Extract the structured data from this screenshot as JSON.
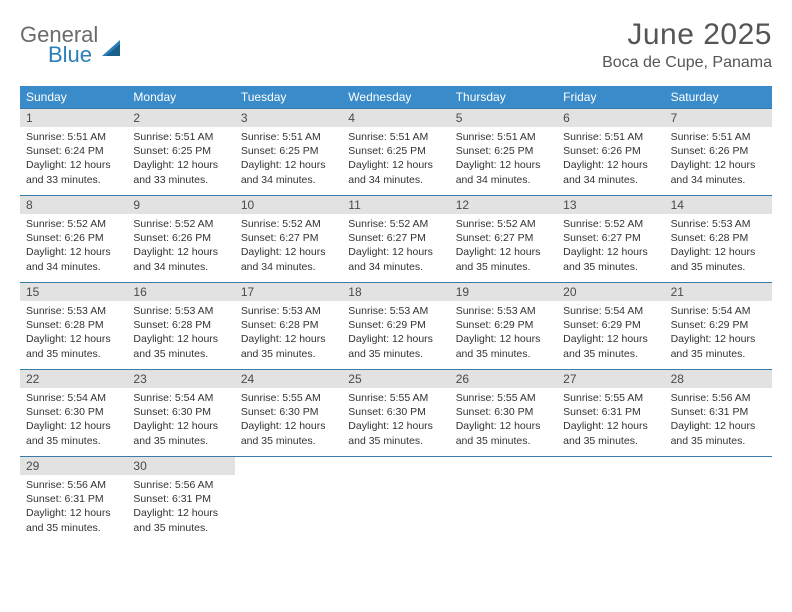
{
  "logo": {
    "text1": "General",
    "text2": "Blue"
  },
  "title": "June 2025",
  "location": "Boca de Cupe, Panama",
  "colors": {
    "header_bar": "#3a8bc9",
    "week_divider": "#3a7ca8",
    "daynum_bg": "#e2e2e2",
    "title_color": "#555555",
    "text_color": "#333333",
    "logo_gray": "#6b6b6b",
    "logo_blue": "#2a7fba"
  },
  "weekdays": [
    "Sunday",
    "Monday",
    "Tuesday",
    "Wednesday",
    "Thursday",
    "Friday",
    "Saturday"
  ],
  "days": [
    {
      "n": "1",
      "sunrise": "5:51 AM",
      "sunset": "6:24 PM",
      "dl": "12 hours and 33 minutes."
    },
    {
      "n": "2",
      "sunrise": "5:51 AM",
      "sunset": "6:25 PM",
      "dl": "12 hours and 33 minutes."
    },
    {
      "n": "3",
      "sunrise": "5:51 AM",
      "sunset": "6:25 PM",
      "dl": "12 hours and 34 minutes."
    },
    {
      "n": "4",
      "sunrise": "5:51 AM",
      "sunset": "6:25 PM",
      "dl": "12 hours and 34 minutes."
    },
    {
      "n": "5",
      "sunrise": "5:51 AM",
      "sunset": "6:25 PM",
      "dl": "12 hours and 34 minutes."
    },
    {
      "n": "6",
      "sunrise": "5:51 AM",
      "sunset": "6:26 PM",
      "dl": "12 hours and 34 minutes."
    },
    {
      "n": "7",
      "sunrise": "5:51 AM",
      "sunset": "6:26 PM",
      "dl": "12 hours and 34 minutes."
    },
    {
      "n": "8",
      "sunrise": "5:52 AM",
      "sunset": "6:26 PM",
      "dl": "12 hours and 34 minutes."
    },
    {
      "n": "9",
      "sunrise": "5:52 AM",
      "sunset": "6:26 PM",
      "dl": "12 hours and 34 minutes."
    },
    {
      "n": "10",
      "sunrise": "5:52 AM",
      "sunset": "6:27 PM",
      "dl": "12 hours and 34 minutes."
    },
    {
      "n": "11",
      "sunrise": "5:52 AM",
      "sunset": "6:27 PM",
      "dl": "12 hours and 34 minutes."
    },
    {
      "n": "12",
      "sunrise": "5:52 AM",
      "sunset": "6:27 PM",
      "dl": "12 hours and 35 minutes."
    },
    {
      "n": "13",
      "sunrise": "5:52 AM",
      "sunset": "6:27 PM",
      "dl": "12 hours and 35 minutes."
    },
    {
      "n": "14",
      "sunrise": "5:53 AM",
      "sunset": "6:28 PM",
      "dl": "12 hours and 35 minutes."
    },
    {
      "n": "15",
      "sunrise": "5:53 AM",
      "sunset": "6:28 PM",
      "dl": "12 hours and 35 minutes."
    },
    {
      "n": "16",
      "sunrise": "5:53 AM",
      "sunset": "6:28 PM",
      "dl": "12 hours and 35 minutes."
    },
    {
      "n": "17",
      "sunrise": "5:53 AM",
      "sunset": "6:28 PM",
      "dl": "12 hours and 35 minutes."
    },
    {
      "n": "18",
      "sunrise": "5:53 AM",
      "sunset": "6:29 PM",
      "dl": "12 hours and 35 minutes."
    },
    {
      "n": "19",
      "sunrise": "5:53 AM",
      "sunset": "6:29 PM",
      "dl": "12 hours and 35 minutes."
    },
    {
      "n": "20",
      "sunrise": "5:54 AM",
      "sunset": "6:29 PM",
      "dl": "12 hours and 35 minutes."
    },
    {
      "n": "21",
      "sunrise": "5:54 AM",
      "sunset": "6:29 PM",
      "dl": "12 hours and 35 minutes."
    },
    {
      "n": "22",
      "sunrise": "5:54 AM",
      "sunset": "6:30 PM",
      "dl": "12 hours and 35 minutes."
    },
    {
      "n": "23",
      "sunrise": "5:54 AM",
      "sunset": "6:30 PM",
      "dl": "12 hours and 35 minutes."
    },
    {
      "n": "24",
      "sunrise": "5:55 AM",
      "sunset": "6:30 PM",
      "dl": "12 hours and 35 minutes."
    },
    {
      "n": "25",
      "sunrise": "5:55 AM",
      "sunset": "6:30 PM",
      "dl": "12 hours and 35 minutes."
    },
    {
      "n": "26",
      "sunrise": "5:55 AM",
      "sunset": "6:30 PM",
      "dl": "12 hours and 35 minutes."
    },
    {
      "n": "27",
      "sunrise": "5:55 AM",
      "sunset": "6:31 PM",
      "dl": "12 hours and 35 minutes."
    },
    {
      "n": "28",
      "sunrise": "5:56 AM",
      "sunset": "6:31 PM",
      "dl": "12 hours and 35 minutes."
    },
    {
      "n": "29",
      "sunrise": "5:56 AM",
      "sunset": "6:31 PM",
      "dl": "12 hours and 35 minutes."
    },
    {
      "n": "30",
      "sunrise": "5:56 AM",
      "sunset": "6:31 PM",
      "dl": "12 hours and 35 minutes."
    }
  ],
  "labels": {
    "sunrise": "Sunrise:",
    "sunset": "Sunset:",
    "daylight": "Daylight:"
  },
  "grid": {
    "columns": 7,
    "rows": 5,
    "first_weekday_index": 0
  }
}
